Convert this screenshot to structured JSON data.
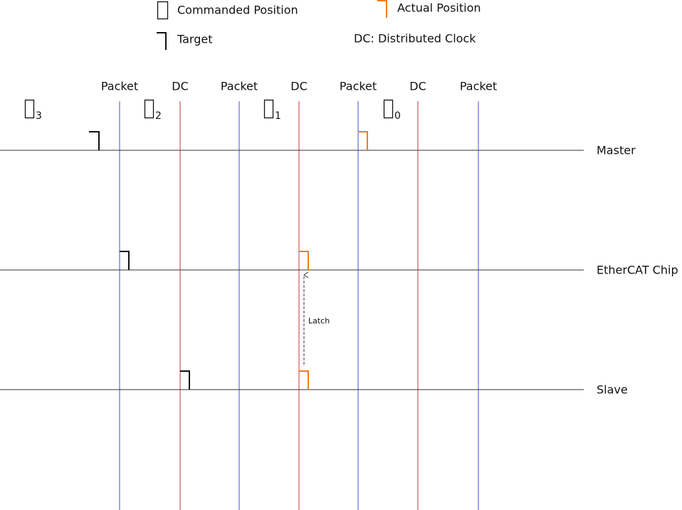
{
  "legend": {
    "commanded": "Commanded Position",
    "actual": "Actual Position",
    "target": "Target",
    "dc_note": "DC: Distributed Clock"
  },
  "columns": [
    "Packet",
    "DC",
    "Packet",
    "DC",
    "Packet",
    "DC",
    "Packet"
  ],
  "lanes": [
    "Master",
    "EtherCAT Chip",
    "Slave"
  ],
  "commanded_subscripts": [
    "3",
    "2",
    "1",
    "0"
  ],
  "latch": "Latch"
}
